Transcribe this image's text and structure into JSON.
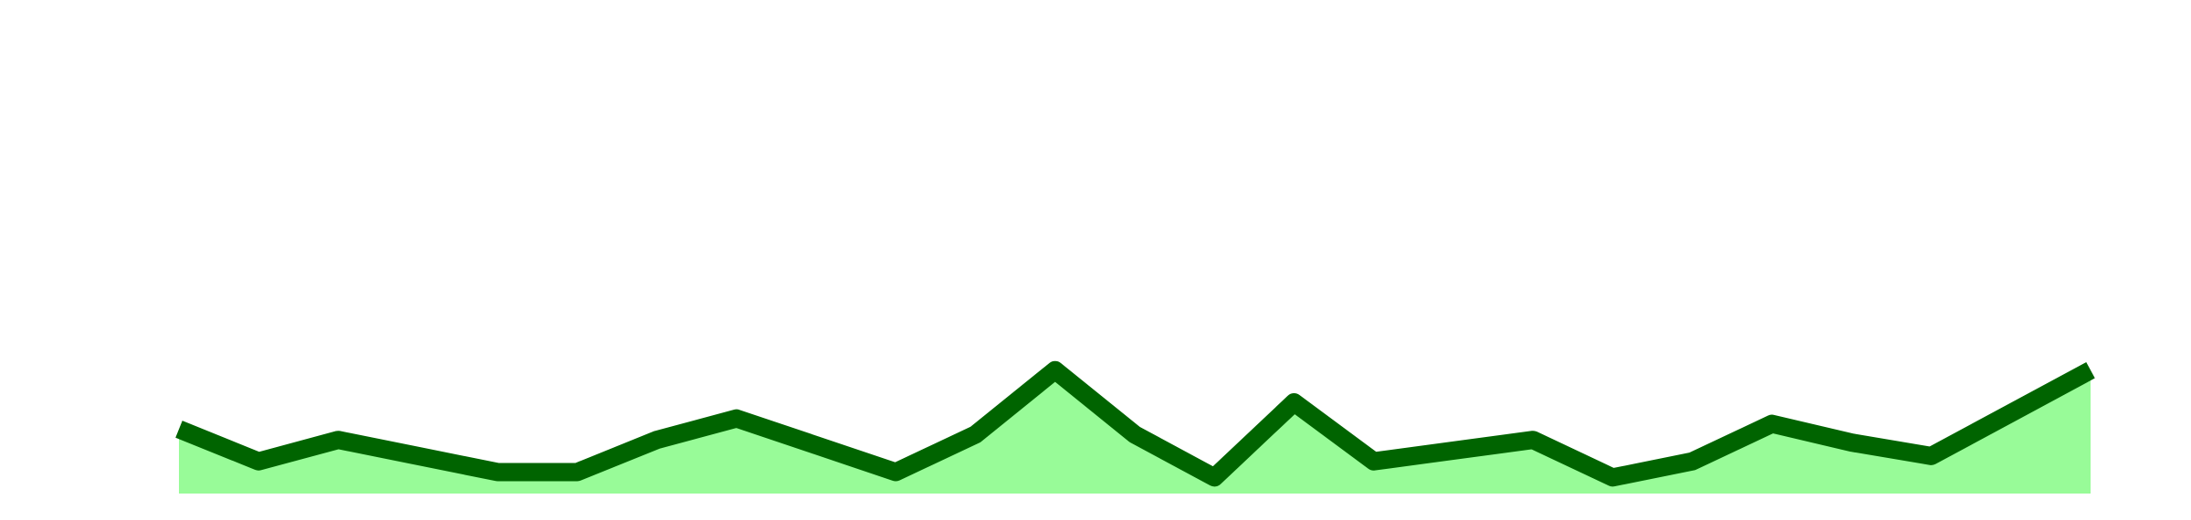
{
  "chart_data": {
    "type": "area",
    "x": [
      1,
      2,
      3,
      4,
      5,
      6,
      7,
      8,
      9,
      10,
      11,
      12,
      13,
      14,
      15,
      16,
      17,
      18,
      19,
      20,
      21,
      22,
      23,
      24,
      25
    ],
    "series": [
      {
        "values": [
          24,
          12,
          20,
          14,
          8,
          8,
          20,
          28,
          18,
          8,
          22,
          46,
          22,
          6,
          34,
          12,
          16,
          20,
          6,
          12,
          26,
          19,
          14,
          30,
          46
        ]
      }
    ],
    "ylim": [
      0,
      150
    ],
    "grid": false,
    "colors": {
      "line": "#006400",
      "fill": "#98fb98"
    }
  }
}
